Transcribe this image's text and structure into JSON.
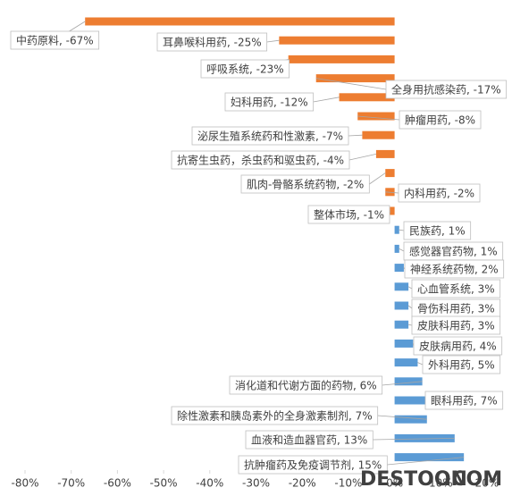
{
  "chart_data": {
    "type": "hbar",
    "values": [
      -67,
      -25,
      -23,
      -17,
      -12,
      -8,
      -7,
      -4,
      -2,
      -2,
      -1,
      1,
      1,
      2,
      3,
      3,
      3,
      4,
      5,
      6,
      7,
      7,
      13,
      15
    ],
    "value_labels": [
      "中药原料, -67%",
      "耳鼻喉科用药, -25%",
      "呼吸系统, -23%",
      "全身用抗感染药, -17%",
      "妇科用药, -12%",
      "肿瘤用药, -8%",
      "泌尿生殖系统药和性激素, -7%",
      "抗寄生虫药，杀虫药和驱虫药, -4%",
      "肌肉-骨骼系统药物, -2%",
      "内科用药, -2%",
      "整体市场, -1%",
      "民族药, 1%",
      "感觉器官药物, 1%",
      "神经系统药物, 2%",
      "心血管系统, 3%",
      "骨伤科用药, 3%",
      "皮肤科用药, 3%",
      "皮肤病用药, 4%",
      "外科用药, 5%",
      "消化道和代谢方面的药物, 6%",
      "眼科用药, 7%",
      "除性激素和胰岛素外的全身激素制剂, 7%",
      "血液和造血器官药, 13%",
      "抗肿瘤药及免疫调节剂, 15%"
    ],
    "colors": {
      "negative": "#ed7d31",
      "positive": "#5b9bd5"
    },
    "xlim": [
      -80,
      20
    ],
    "xticks": [
      {
        "value": -80,
        "label": "-80%"
      },
      {
        "value": -70,
        "label": "-70%"
      },
      {
        "value": -60,
        "label": "-60%"
      },
      {
        "value": -50,
        "label": "-50%"
      },
      {
        "value": -40,
        "label": "-40%"
      },
      {
        "value": -30,
        "label": "-30%"
      },
      {
        "value": -20,
        "label": "-20%"
      },
      {
        "value": -10,
        "label": "-10%"
      },
      {
        "value": 0,
        "label": "0%"
      },
      {
        "value": 10,
        "label": "10%"
      },
      {
        "value": 20,
        "label": "20%"
      }
    ],
    "watermark": [
      "DESTOON",
      ".COM"
    ]
  }
}
